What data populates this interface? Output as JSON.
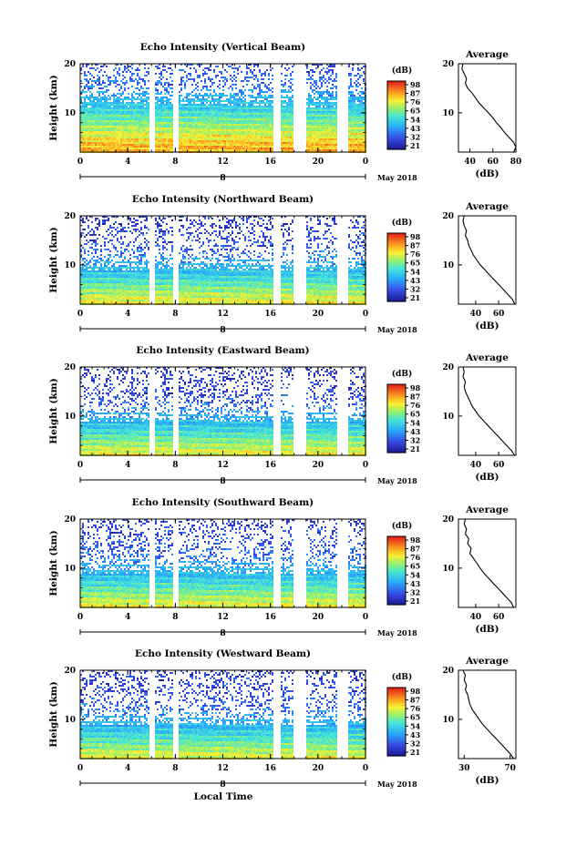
{
  "figure": {
    "xlabel": "Local Time",
    "date_label": "May 2018",
    "day_marker": "8"
  },
  "chart_data": [
    {
      "type": "heatmap",
      "title": "Echo Intensity (Vertical Beam)",
      "ylabel": "Height (km)",
      "x_ticks": [
        "0",
        "4",
        "8",
        "12",
        "16",
        "20",
        "0"
      ],
      "y_ticks": [
        "20",
        "10"
      ],
      "xlim": [
        0,
        24
      ],
      "ylim": [
        2,
        20
      ],
      "colorbar": {
        "unit": "(dB)",
        "ticks": [
          "98",
          "87",
          "76",
          "65",
          "54",
          "43",
          "32",
          "21"
        ],
        "range": [
          21,
          98
        ]
      },
      "data_gaps_hours": [
        [
          5.8,
          6.2
        ],
        [
          7.8,
          8.2
        ],
        [
          16.2,
          16.8
        ],
        [
          17.8,
          19.0
        ],
        [
          21.5,
          22.5
        ]
      ],
      "profile": {
        "title": "Average",
        "xlabel": "(dB)",
        "x_ticks": [
          "40",
          "60",
          "80"
        ],
        "xlim": [
          30,
          80
        ],
        "y_ticks": [
          "20",
          "10"
        ],
        "ylim": [
          2,
          20
        ],
        "height_km": [
          2,
          3,
          4,
          5,
          6,
          7,
          8,
          9,
          10,
          11,
          12,
          13,
          14,
          15,
          16,
          17,
          18,
          19,
          20
        ],
        "intensity_db": [
          78,
          80,
          78,
          74,
          70,
          67,
          63,
          60,
          56,
          52,
          48,
          45,
          42,
          38,
          36,
          37,
          35,
          33,
          34
        ]
      }
    },
    {
      "type": "heatmap",
      "title": "Echo Intensity (Northward Beam)",
      "ylabel": "Height (km)",
      "x_ticks": [
        "0",
        "4",
        "8",
        "12",
        "16",
        "20",
        "0"
      ],
      "y_ticks": [
        "20",
        "10"
      ],
      "xlim": [
        0,
        24
      ],
      "ylim": [
        2,
        20
      ],
      "colorbar": {
        "unit": "(dB)",
        "ticks": [
          "98",
          "87",
          "76",
          "65",
          "54",
          "43",
          "32",
          "21"
        ],
        "range": [
          21,
          98
        ]
      },
      "data_gaps_hours": [
        [
          5.8,
          6.2
        ],
        [
          7.8,
          8.2
        ],
        [
          16.2,
          16.8
        ],
        [
          17.8,
          19.0
        ],
        [
          21.5,
          22.5
        ]
      ],
      "profile": {
        "title": "Average",
        "xlabel": "(dB)",
        "x_ticks": [
          "40",
          "60"
        ],
        "xlim": [
          25,
          75
        ],
        "y_ticks": [
          "20",
          "10"
        ],
        "ylim": [
          2,
          20
        ],
        "height_km": [
          2,
          3,
          4,
          5,
          6,
          7,
          8,
          9,
          10,
          11,
          12,
          13,
          14,
          15,
          16,
          17,
          18,
          19,
          20
        ],
        "intensity_db": [
          74,
          72,
          68,
          64,
          60,
          56,
          52,
          48,
          44,
          41,
          38,
          36,
          34,
          33,
          31,
          32,
          30,
          29,
          30
        ]
      }
    },
    {
      "type": "heatmap",
      "title": "Echo Intensity (Eastward Beam)",
      "ylabel": "Height (km)",
      "x_ticks": [
        "0",
        "4",
        "8",
        "12",
        "16",
        "20",
        "0"
      ],
      "y_ticks": [
        "20",
        "10"
      ],
      "xlim": [
        0,
        24
      ],
      "ylim": [
        2,
        20
      ],
      "colorbar": {
        "unit": "(dB)",
        "ticks": [
          "98",
          "87",
          "76",
          "65",
          "54",
          "43",
          "32",
          "21"
        ],
        "range": [
          21,
          98
        ]
      },
      "data_gaps_hours": [
        [
          5.8,
          6.2
        ],
        [
          7.8,
          8.2
        ],
        [
          16.2,
          16.8
        ],
        [
          17.8,
          19.0
        ],
        [
          21.5,
          22.5
        ]
      ],
      "profile": {
        "title": "Average",
        "xlabel": "(dB)",
        "x_ticks": [
          "40",
          "60"
        ],
        "xlim": [
          25,
          75
        ],
        "y_ticks": [
          "20",
          "10"
        ],
        "ylim": [
          2,
          20
        ],
        "height_km": [
          2,
          3,
          4,
          5,
          6,
          7,
          8,
          9,
          10,
          11,
          12,
          13,
          14,
          15,
          16,
          17,
          18,
          19,
          20
        ],
        "intensity_db": [
          74,
          71,
          67,
          63,
          59,
          55,
          51,
          47,
          43,
          40,
          37,
          35,
          33,
          31,
          30,
          31,
          29,
          30,
          29
        ]
      }
    },
    {
      "type": "heatmap",
      "title": "Echo Intensity (Southward Beam)",
      "ylabel": "Height (km)",
      "x_ticks": [
        "0",
        "4",
        "8",
        "12",
        "16",
        "20",
        "0"
      ],
      "y_ticks": [
        "20",
        "10"
      ],
      "xlim": [
        0,
        24
      ],
      "ylim": [
        2,
        20
      ],
      "colorbar": {
        "unit": "(dB)",
        "ticks": [
          "98",
          "87",
          "76",
          "65",
          "54",
          "43",
          "32",
          "21"
        ],
        "range": [
          21,
          98
        ]
      },
      "data_gaps_hours": [
        [
          5.8,
          6.2
        ],
        [
          7.8,
          8.2
        ],
        [
          16.2,
          16.8
        ],
        [
          17.8,
          19.0
        ],
        [
          21.5,
          22.5
        ]
      ],
      "profile": {
        "title": "Average",
        "xlabel": "(dB)",
        "x_ticks": [
          "40",
          "60"
        ],
        "xlim": [
          25,
          75
        ],
        "y_ticks": [
          "20",
          "10"
        ],
        "ylim": [
          2,
          20
        ],
        "height_km": [
          2,
          3,
          4,
          5,
          6,
          7,
          8,
          9,
          10,
          11,
          12,
          13,
          14,
          15,
          16,
          17,
          18,
          19,
          20
        ],
        "intensity_db": [
          73,
          71,
          67,
          63,
          59,
          55,
          51,
          47,
          44,
          41,
          38,
          35,
          36,
          33,
          34,
          31,
          32,
          30,
          31
        ]
      }
    },
    {
      "type": "heatmap",
      "title": "Echo Intensity (Westward Beam)",
      "ylabel": "Height (km)",
      "x_ticks": [
        "0",
        "4",
        "8",
        "12",
        "16",
        "20",
        "0"
      ],
      "y_ticks": [
        "20",
        "10"
      ],
      "xlim": [
        0,
        24
      ],
      "ylim": [
        2,
        20
      ],
      "colorbar": {
        "unit": "(dB)",
        "ticks": [
          "98",
          "87",
          "76",
          "65",
          "54",
          "43",
          "32",
          "21"
        ],
        "range": [
          21,
          98
        ]
      },
      "data_gaps_hours": [
        [
          5.8,
          6.2
        ],
        [
          7.8,
          8.2
        ],
        [
          16.2,
          16.8
        ],
        [
          17.8,
          19.0
        ],
        [
          21.5,
          22.5
        ]
      ],
      "profile": {
        "title": "Average",
        "xlabel": "(dB)",
        "x_ticks": [
          "30",
          "70"
        ],
        "xlim": [
          25,
          75
        ],
        "y_ticks": [
          "20",
          "10"
        ],
        "ylim": [
          2,
          20
        ],
        "height_km": [
          2,
          3,
          4,
          5,
          6,
          7,
          8,
          9,
          10,
          11,
          12,
          13,
          14,
          15,
          16,
          17,
          18,
          19,
          20
        ],
        "intensity_db": [
          73,
          70,
          66,
          62,
          58,
          54,
          50,
          46,
          43,
          40,
          37,
          35,
          34,
          33,
          31,
          32,
          30,
          31,
          29
        ]
      }
    }
  ]
}
